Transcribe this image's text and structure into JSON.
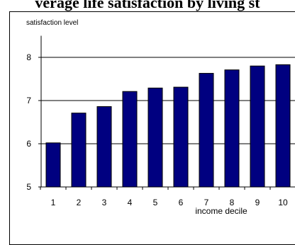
{
  "chart_data": {
    "type": "bar",
    "title": "verage life satisfaction by living st",
    "ylabel": "satisfaction level",
    "xlabel": "income decile",
    "categories": [
      "1",
      "2",
      "3",
      "4",
      "5",
      "6",
      "7",
      "8",
      "9",
      "10"
    ],
    "values": [
      6.02,
      6.71,
      6.86,
      7.21,
      7.29,
      7.31,
      7.63,
      7.71,
      7.8,
      7.83
    ],
    "ylim": [
      5,
      8.5
    ],
    "yticks": [
      "5",
      "6",
      "7",
      "8"
    ],
    "grid": true,
    "bar_color": "#000080",
    "bar_edge_color": "#000000"
  }
}
